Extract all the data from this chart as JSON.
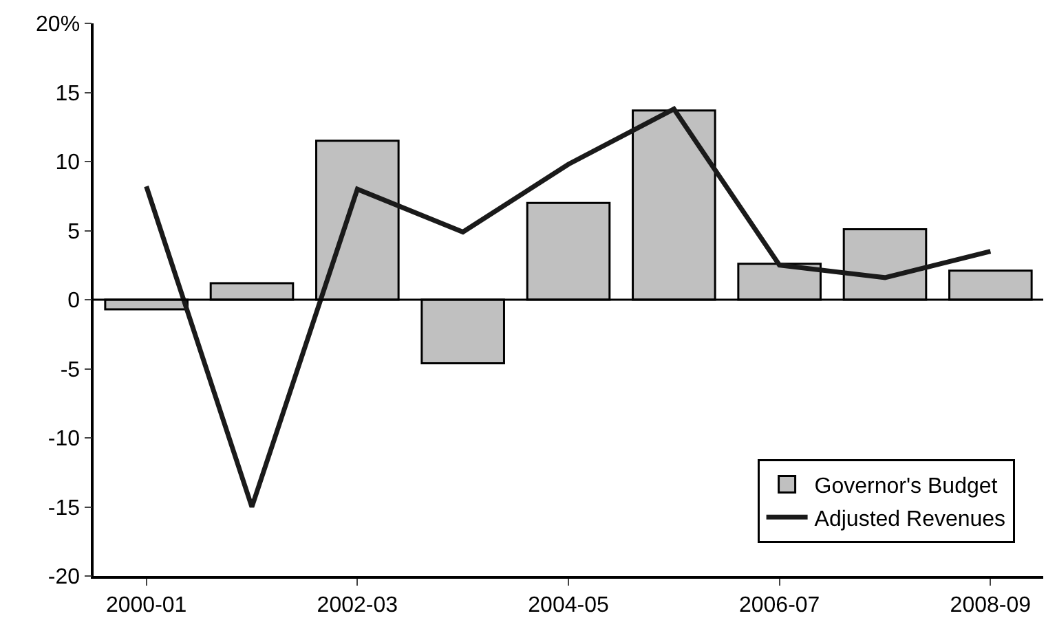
{
  "chart_data": {
    "type": "bar",
    "categories": [
      "2000-01",
      null,
      "2002-03",
      null,
      "2004-05",
      null,
      "2006-07",
      null,
      "2008-09"
    ],
    "series": [
      {
        "name": "Governor's Budget",
        "color": "#c0c0c0",
        "values": [
          -0.7,
          1.2,
          11.5,
          -4.6,
          7.0,
          13.7,
          2.6,
          5.1,
          2.1
        ]
      },
      {
        "name": "Adjusted Revenues",
        "type": "line",
        "color": "#1a1a1a",
        "values": [
          8.2,
          -15,
          8.0,
          4.9,
          9.8,
          13.8,
          2.5,
          1.6,
          3.5
        ]
      }
    ],
    "ylim": [
      -20,
      20
    ],
    "yticks": [
      -20,
      -15,
      -10,
      -5,
      0,
      5,
      10,
      15,
      {
        "value": 20,
        "label": "20%"
      }
    ],
    "ref_lines": [
      {
        "axis": "y",
        "value": 0
      }
    ],
    "grid": false,
    "legend": "bottom right",
    "marker": "none",
    "line_style": "solid"
  }
}
